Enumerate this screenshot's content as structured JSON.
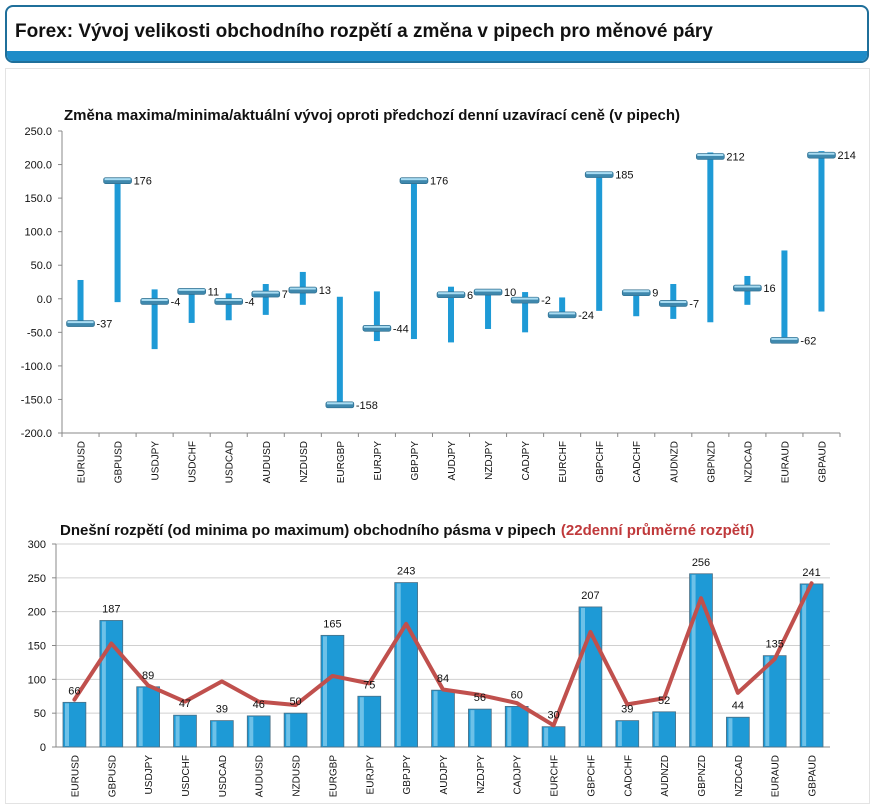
{
  "header": {
    "title": "Forex: Vývoj velikosti obchodního rozpětí a změna v pipech pro měnové páry"
  },
  "chart_data": [
    {
      "type": "range",
      "title": "Změna maxima/minima/aktuální vývoj oproti předchozí denní uzavírací ceně (v pipech)",
      "categories": [
        "EURUSD",
        "GBPUSD",
        "USDJPY",
        "USDCHF",
        "USDCAD",
        "AUDUSD",
        "NZDUSD",
        "EURGBP",
        "EURJPY",
        "GBPJPY",
        "AUDJPY",
        "NZDJPY",
        "CADJPY",
        "EURCHF",
        "GBPCHF",
        "CADCHF",
        "AUDNZD",
        "GBPNZD",
        "NZDCAD",
        "EURAUD",
        "GBPAUD"
      ],
      "high": [
        28,
        180,
        14,
        15,
        8,
        22,
        40,
        3,
        11,
        180,
        18,
        14,
        10,
        2,
        188,
        12,
        22,
        218,
        34,
        72,
        220
      ],
      "low": [
        -40,
        -5,
        -75,
        -36,
        -32,
        -24,
        -9,
        -160,
        -63,
        -60,
        -65,
        -45,
        -50,
        -26,
        -18,
        -26,
        -30,
        -35,
        -9,
        -64,
        -19
      ],
      "current": [
        -37,
        176,
        -4,
        11,
        -4,
        7,
        13,
        -158,
        -44,
        176,
        6,
        10,
        -2,
        -24,
        185,
        9,
        -7,
        212,
        16,
        -62,
        214
      ],
      "ylim": [
        -200,
        250
      ],
      "yticks": [
        -200,
        -150,
        -100,
        -50,
        0,
        50,
        100,
        150,
        200,
        250
      ],
      "ytick_labels": [
        "-200.0",
        "-150.0",
        "-100.0",
        "-50.0",
        "0.0",
        "50.0",
        "100.0",
        "150.0",
        "200.0",
        "250.0"
      ],
      "colors": {
        "bar": "#1e9ad6",
        "marker": "#3f88ad"
      }
    },
    {
      "type": "bar",
      "title": "Dnešní rozpětí (od minima po maximum) obchodního pásma v pipech",
      "title_red": "(22denní průměrné rozpětí)",
      "categories": [
        "EURUSD",
        "GBPUSD",
        "USDJPY",
        "USDCHF",
        "USDCAD",
        "AUDUSD",
        "NZDUSD",
        "EURGBP",
        "EURJPY",
        "GBPJPY",
        "AUDJPY",
        "NZDJPY",
        "CADJPY",
        "EURCHF",
        "GBPCHF",
        "CADCHF",
        "AUDNZD",
        "GBPNZD",
        "NZDCAD",
        "EURAUD",
        "GBPAUD"
      ],
      "values": [
        66,
        187,
        89,
        47,
        39,
        46,
        50,
        165,
        75,
        243,
        84,
        56,
        60,
        30,
        207,
        39,
        52,
        256,
        44,
        135,
        241
      ],
      "avg": [
        70,
        153,
        91,
        67,
        97,
        67,
        62,
        105,
        94,
        182,
        85,
        77,
        65,
        32,
        170,
        63,
        72,
        220,
        80,
        130,
        242
      ],
      "ylim": [
        0,
        300
      ],
      "yticks": [
        0,
        50,
        100,
        150,
        200,
        250,
        300
      ],
      "colors": {
        "bar": "#1e9ad6",
        "line": "#c0504d"
      }
    }
  ]
}
